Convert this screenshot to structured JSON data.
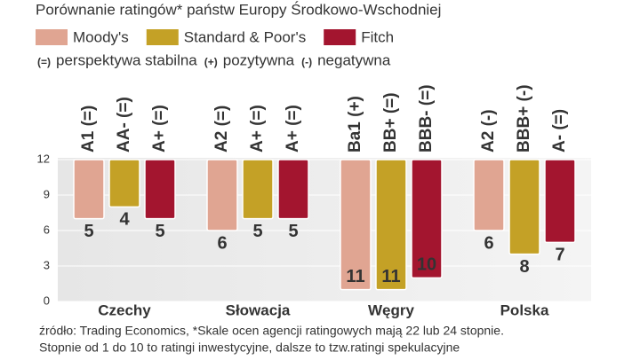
{
  "chart_data": {
    "type": "bar",
    "title": "Porównanie ratingów* państw Europy Środkowo-Wschodniej",
    "legend_note": [
      {
        "symbol": "(=)",
        "text": "perspektywa stabilna"
      },
      {
        "symbol": "(+)",
        "text": "pozytywna"
      },
      {
        "symbol": "(-)",
        "text": "negatywna"
      }
    ],
    "categories": [
      "Czechy",
      "Słowacja",
      "Węgry",
      "Polska"
    ],
    "series": [
      {
        "name": "Moody's",
        "color": "#e0a592",
        "values": [
          5,
          6,
          11,
          6
        ],
        "ratings": [
          "A1 (=)",
          "A2 (=)",
          "Ba1 (+)",
          "A2 (-)"
        ]
      },
      {
        "name": "Standard & Poor's",
        "color": "#c4a126",
        "values": [
          4,
          5,
          11,
          8
        ],
        "ratings": [
          "AA- (=)",
          "A+ (=)",
          "BB+ (=)",
          "BBB+ (-)"
        ]
      },
      {
        "name": "Fitch",
        "color": "#a3152f",
        "values": [
          5,
          5,
          10,
          7
        ],
        "ratings": [
          "A+ (=)",
          "A+ (=)",
          "BBB- (=)",
          "A- (=)"
        ]
      }
    ],
    "ylim": [
      0,
      12
    ],
    "yticks": [
      0,
      3,
      6,
      9,
      12
    ],
    "grid": true,
    "source": [
      "źródło: Trading Economics, *Skale ocen agencji ratingowych mają 22 lub 24 stopnie.",
      "Stopnie od 1 do 10 to ratingi inwestycyjne, dalsze to tzw.ratingi spekulacyjne"
    ]
  }
}
